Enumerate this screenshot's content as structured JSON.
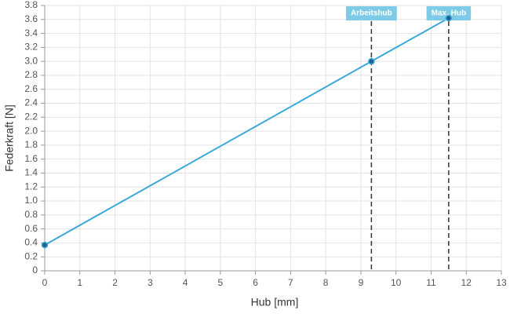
{
  "chart_data": {
    "type": "line",
    "xlabel": "Hub [mm]",
    "ylabel": "Federkraft [N]",
    "x": [
      0,
      9.3,
      11.5
    ],
    "values": [
      0.37,
      3.0,
      3.62
    ],
    "color": "#3ba9d9",
    "xlim": [
      0,
      13
    ],
    "xticks": [
      0,
      1,
      2,
      3,
      4,
      5,
      6,
      7,
      8,
      9,
      10,
      11,
      12,
      13
    ],
    "ylim": [
      0,
      3.8
    ],
    "yticks": [
      0,
      0.2,
      0.4,
      0.6,
      0.8,
      {
        "value": 1,
        "label": "1.0"
      },
      1.2,
      1.4,
      1.6,
      1.8,
      {
        "value": 2,
        "label": "2.0"
      },
      2.2,
      2.4,
      2.6,
      2.8,
      {
        "value": 3,
        "label": "3.0"
      },
      3.2,
      3.4,
      3.6,
      3.8
    ],
    "grid": true,
    "annotations": [
      {
        "x": 9.3,
        "label": "Arbeitshub"
      },
      {
        "x": 11.5,
        "label": "Max. Hub"
      }
    ],
    "annotation_color": "#7ecbe8"
  }
}
